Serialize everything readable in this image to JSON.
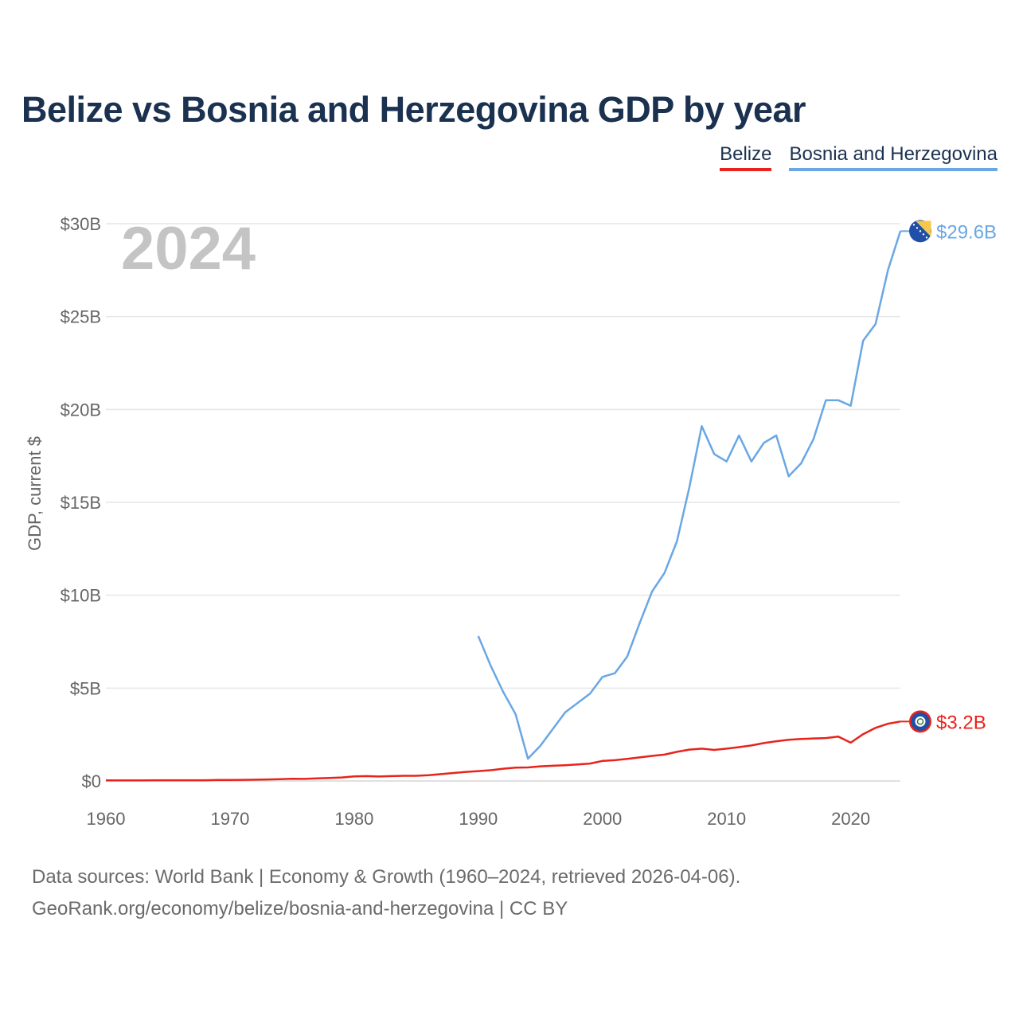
{
  "chart_data": {
    "type": "line",
    "title": "Belize vs Bosnia and Herzegovina GDP by year",
    "year_label": "2024",
    "ylabel": "GDP, current $",
    "xlabel": "",
    "xlim": [
      1960,
      2024
    ],
    "ylim": [
      0,
      30
    ],
    "y_ticks": [
      0,
      5,
      10,
      15,
      20,
      25,
      30
    ],
    "y_tick_labels": [
      "$0",
      "$5B",
      "$10B",
      "$15B",
      "$20B",
      "$25B",
      "$30B"
    ],
    "x_ticks": [
      1960,
      1970,
      1980,
      1990,
      2000,
      2010,
      2020
    ],
    "x_tick_labels": [
      "1960",
      "1970",
      "1980",
      "1990",
      "2000",
      "2010",
      "2020"
    ],
    "grid": true,
    "legend_position": "top-right",
    "series": [
      {
        "name": "Belize",
        "color": "#e8231b",
        "end_label": "$3.2B",
        "x": [
          1960,
          1961,
          1962,
          1963,
          1964,
          1965,
          1966,
          1967,
          1968,
          1969,
          1970,
          1971,
          1972,
          1973,
          1974,
          1975,
          1976,
          1977,
          1978,
          1979,
          1980,
          1981,
          1982,
          1983,
          1984,
          1985,
          1986,
          1987,
          1988,
          1989,
          1990,
          1991,
          1992,
          1993,
          1994,
          1995,
          1996,
          1997,
          1998,
          1999,
          2000,
          2001,
          2002,
          2003,
          2004,
          2005,
          2006,
          2007,
          2008,
          2009,
          2010,
          2011,
          2012,
          2013,
          2014,
          2015,
          2016,
          2017,
          2018,
          2019,
          2020,
          2021,
          2022,
          2023,
          2024
        ],
        "values": [
          0.03,
          0.03,
          0.03,
          0.03,
          0.04,
          0.04,
          0.04,
          0.04,
          0.04,
          0.05,
          0.05,
          0.06,
          0.07,
          0.08,
          0.1,
          0.12,
          0.11,
          0.14,
          0.16,
          0.19,
          0.25,
          0.26,
          0.24,
          0.26,
          0.28,
          0.28,
          0.31,
          0.37,
          0.43,
          0.49,
          0.53,
          0.58,
          0.66,
          0.72,
          0.73,
          0.79,
          0.82,
          0.85,
          0.89,
          0.94,
          1.08,
          1.12,
          1.19,
          1.27,
          1.35,
          1.42,
          1.57,
          1.69,
          1.74,
          1.67,
          1.74,
          1.82,
          1.91,
          2.04,
          2.14,
          2.22,
          2.26,
          2.29,
          2.31,
          2.39,
          2.06,
          2.52,
          2.86,
          3.08,
          3.2
        ]
      },
      {
        "name": "Bosnia and Herzegovina",
        "color": "#6aa7e4",
        "end_label": "$29.6B",
        "x": [
          1990,
          1991,
          1992,
          1993,
          1994,
          1995,
          1996,
          1997,
          1998,
          1999,
          2000,
          2001,
          2002,
          2003,
          2004,
          2005,
          2006,
          2007,
          2008,
          2009,
          2010,
          2011,
          2012,
          2013,
          2014,
          2015,
          2016,
          2017,
          2018,
          2019,
          2020,
          2021,
          2022,
          2023,
          2024
        ],
        "values": [
          7.8,
          6.2,
          4.8,
          3.6,
          1.2,
          1.9,
          2.8,
          3.7,
          4.2,
          4.7,
          5.6,
          5.8,
          6.7,
          8.5,
          10.2,
          11.2,
          12.9,
          15.8,
          19.1,
          17.6,
          17.2,
          18.6,
          17.2,
          18.2,
          18.6,
          16.4,
          17.1,
          18.4,
          20.5,
          20.5,
          20.2,
          23.7,
          24.6,
          27.5,
          29.6
        ]
      }
    ]
  },
  "legend": [
    "Belize",
    "Bosnia and Herzegovina"
  ],
  "footer": {
    "line1": "Data sources: World Bank | Economy & Growth (1960–2024, retrieved 2026-04-06).",
    "line2": "GeoRank.org/economy/belize/bosnia-and-herzegovina | CC BY"
  },
  "colors": {
    "title": "#1b3150",
    "grid": "#e6e6e6",
    "axis": "#666666",
    "belize": "#e8231b",
    "bosnia": "#6aa7e4"
  },
  "icons": {
    "belize_marker": "belize-flag-icon",
    "bosnia_marker": "bosnia-flag-icon"
  }
}
